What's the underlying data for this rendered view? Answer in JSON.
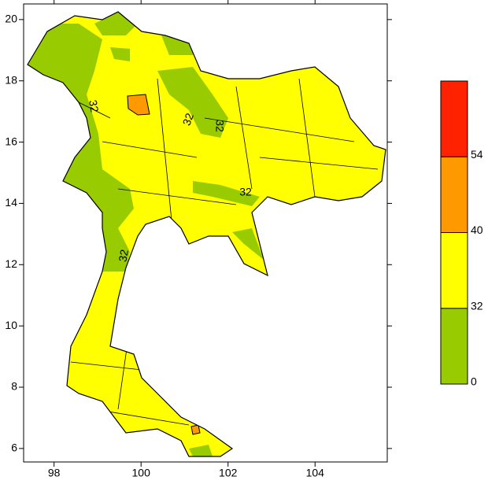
{
  "chart_data": {
    "type": "contour-map",
    "xlim": [
      97.3,
      105.66
    ],
    "ylim": [
      5.56,
      20.51
    ],
    "xticks": [
      98,
      100,
      102,
      104
    ],
    "yticks": [
      6,
      8,
      10,
      12,
      14,
      16,
      18,
      20
    ],
    "contour_labels": [
      "32",
      "32",
      "32",
      "32",
      "32"
    ],
    "colorbar": {
      "levels": [
        0,
        32,
        40,
        54
      ],
      "colors": [
        "#99cc00",
        "#ffff00",
        "#ff9900",
        "#ff2200"
      ]
    }
  }
}
